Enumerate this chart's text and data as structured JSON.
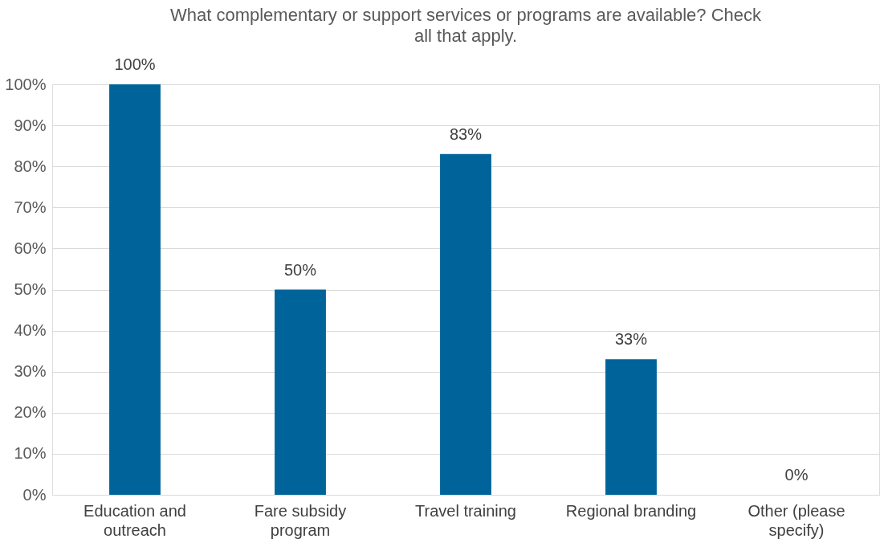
{
  "chart_data": {
    "type": "bar",
    "title": "What complementary or support services or programs are available? Check all that apply.",
    "categories": [
      "Education and outreach",
      "Fare subsidy program",
      "Travel training",
      "Regional branding",
      "Other (please specify)"
    ],
    "values": [
      100,
      50,
      83,
      33,
      0
    ],
    "color": "#00649a",
    "ylim": [
      0,
      100
    ],
    "yticks": [
      {
        "value": 0,
        "label": "0%"
      },
      {
        "value": 10,
        "label": "10%"
      },
      {
        "value": 20,
        "label": "20%"
      },
      {
        "value": 30,
        "label": "30%"
      },
      {
        "value": 40,
        "label": "40%"
      },
      {
        "value": 50,
        "label": "50%"
      },
      {
        "value": 60,
        "label": "60%"
      },
      {
        "value": 70,
        "label": "70%"
      },
      {
        "value": 80,
        "label": "80%"
      },
      {
        "value": 90,
        "label": "90%"
      },
      {
        "value": 100,
        "label": "100%"
      }
    ],
    "value_labels": [
      "100%",
      "50%",
      "83%",
      "33%",
      "0%"
    ],
    "grid": "y"
  }
}
